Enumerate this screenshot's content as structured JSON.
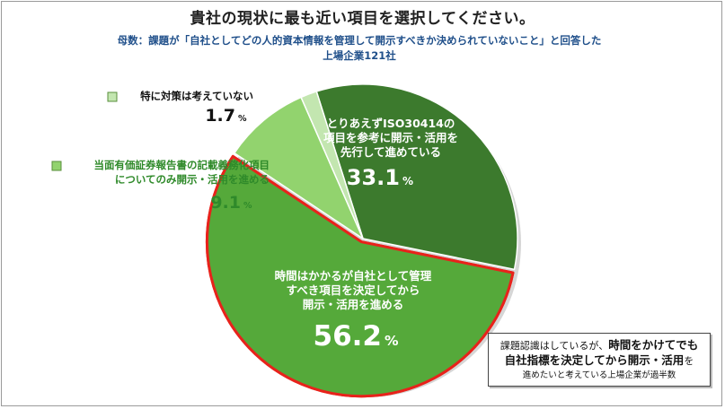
{
  "title": "貴社の現状に最も近い項目を選択してください。",
  "subtitle_line1": "母数：課題が「自社としてどの人的資本情報を管理して開示すべきか決められていないこと」と回答した",
  "subtitle_line2": "上場企業121社",
  "callout": {
    "line1_normal_a": "課題認識",
    "line1_normal_b": "はしているが、",
    "line1_bold": "時間をかけてでも",
    "line2_bold": "自社指標を決定してから開示・活用",
    "line2_normal": "を",
    "line3": "進めたいと考えている上場企業が過半数"
  },
  "chart_data": {
    "type": "pie",
    "unit": "%",
    "slices": [
      {
        "label_lines": [
          "とりあえずISO30414の",
          "項目を参考に開示・活用を",
          "先行して進めている"
        ],
        "value": 33.1,
        "color": "#3c7a2d",
        "label_color": "#ffffff"
      },
      {
        "label_lines": [
          "時間はかかるが自社として管理",
          "すべき項目を決定してから",
          "開示・活用を進める"
        ],
        "value": 56.2,
        "color": "#55a93a",
        "label_color": "#ffffff",
        "highlighted": true,
        "highlight_color": "#e8221b"
      },
      {
        "label_lines": [
          "当面有価証券報告書の記載義務化項目",
          "についてのみ開示・活用を進める"
        ],
        "value": 9.1,
        "color": "#92d36e",
        "label_color": "#2f8a2a"
      },
      {
        "label_lines": [
          "特に対策は考えていない"
        ],
        "value": 1.7,
        "color": "#c3e6b0",
        "label_color": "#111111"
      }
    ]
  }
}
